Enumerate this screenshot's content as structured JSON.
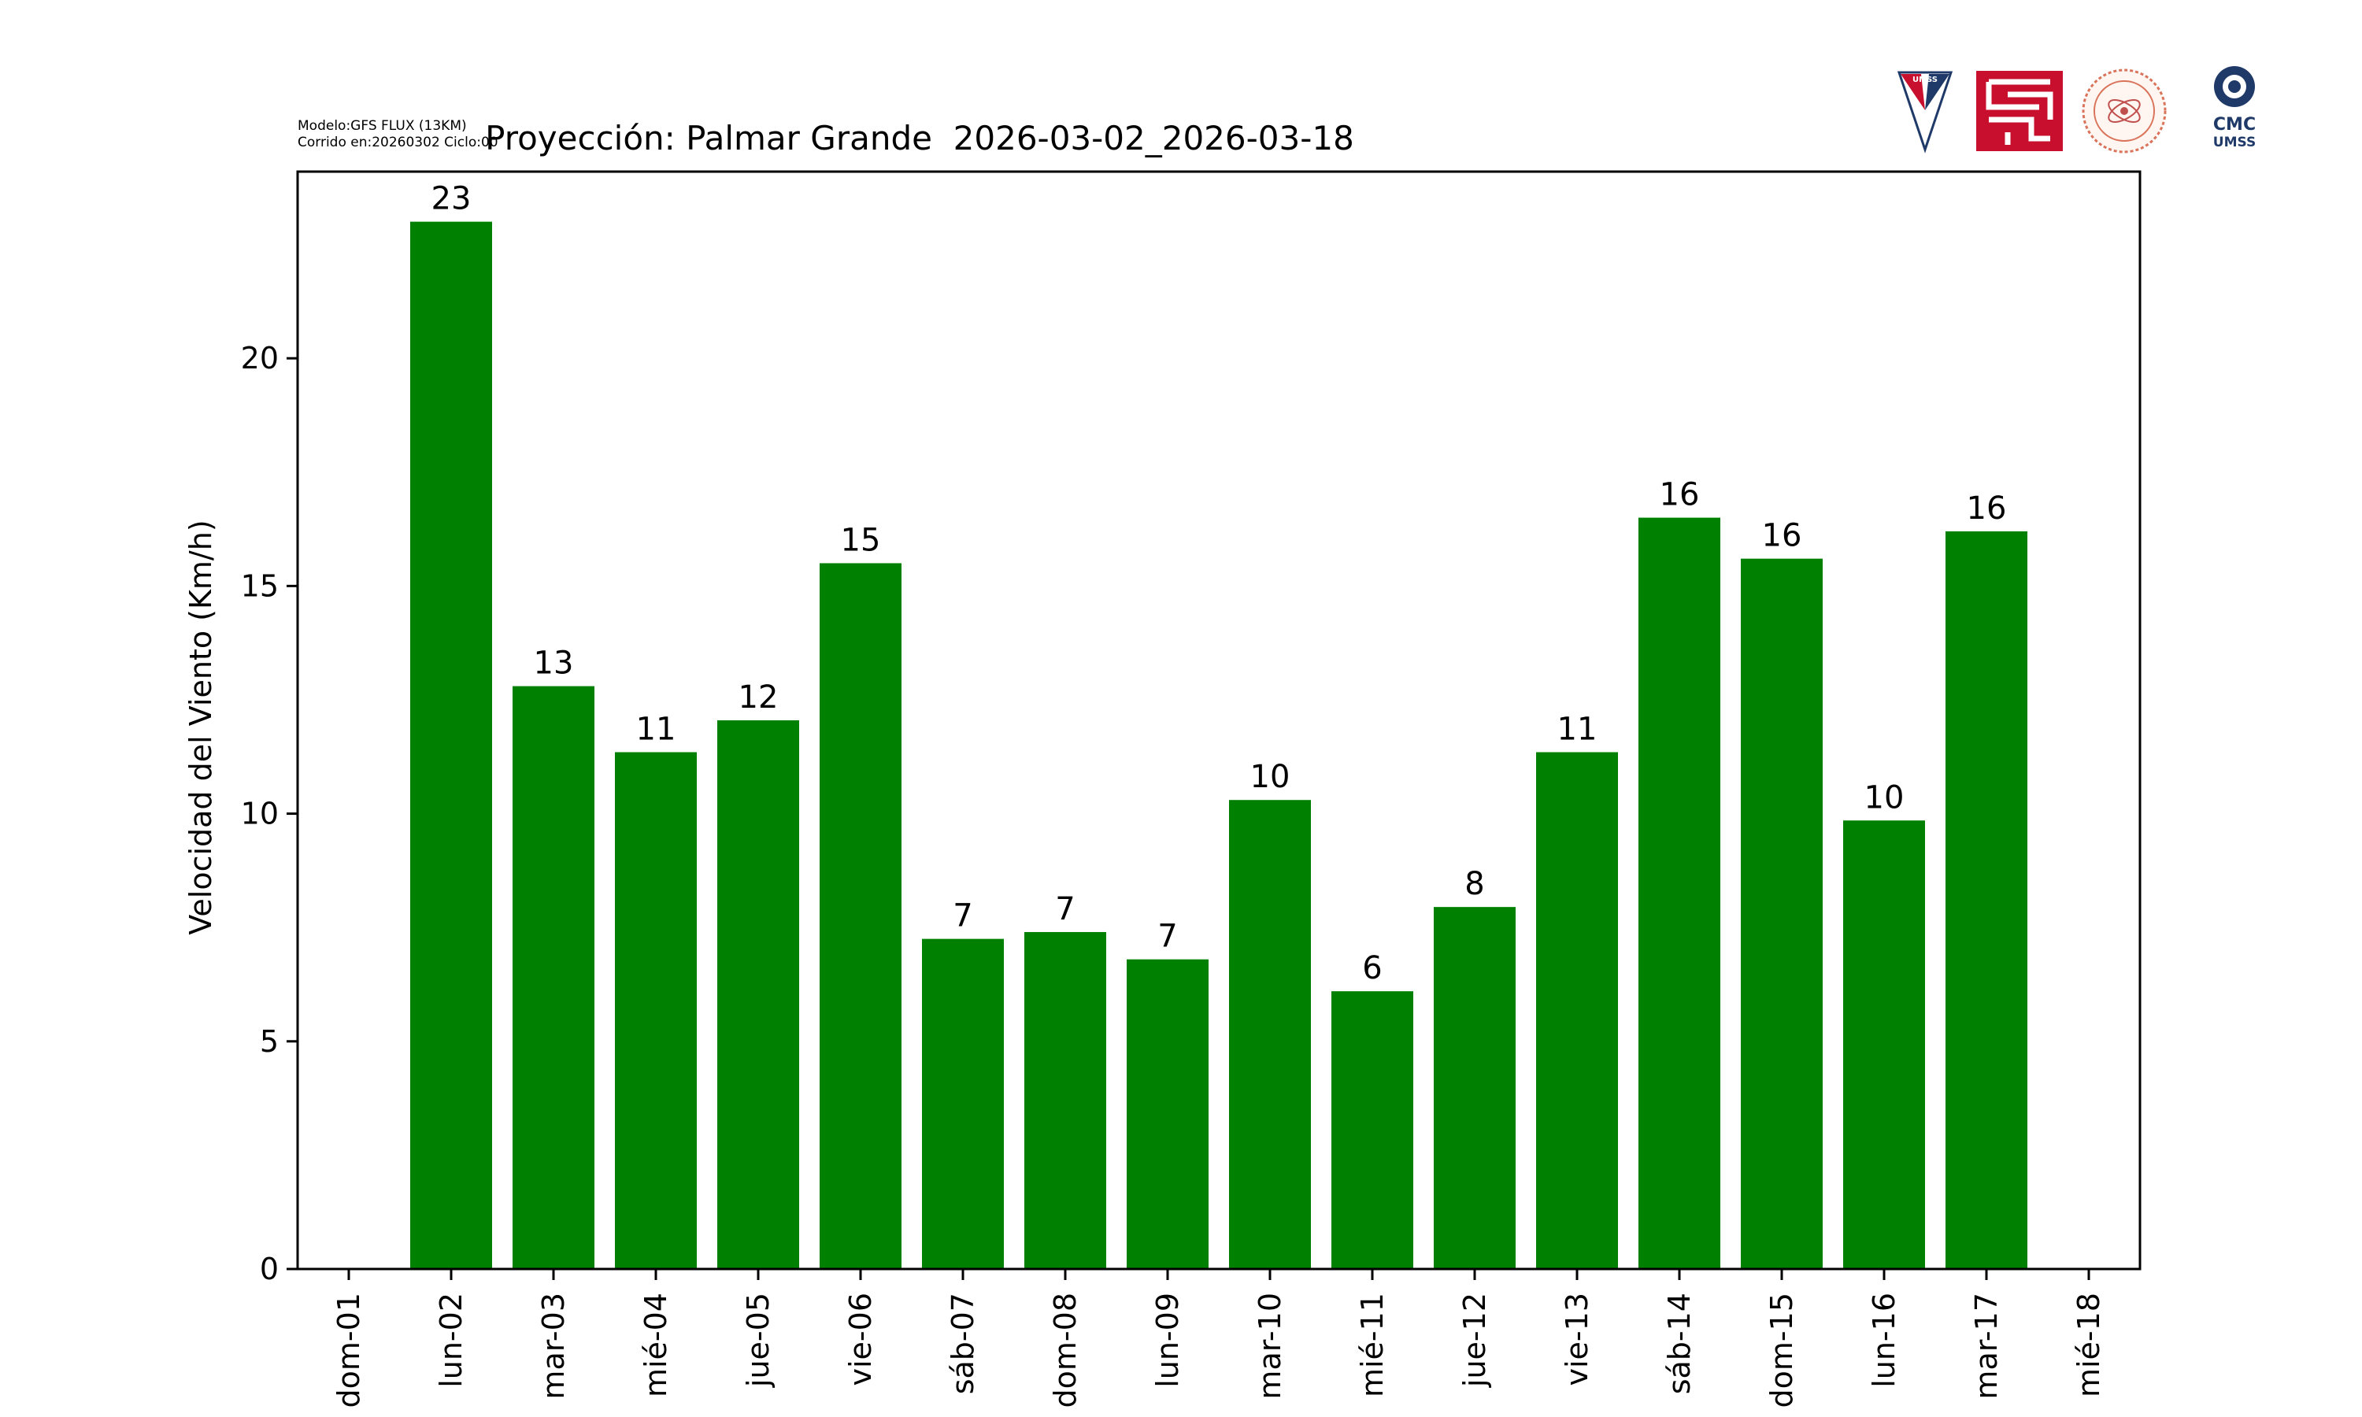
{
  "header": {
    "model_line": "Modelo:GFS FLUX (13KM)",
    "run_line": "Corrido en:20260302 Ciclo:00"
  },
  "logos": {
    "umss_shield_text": "UMSS",
    "cmc_text": "CMC",
    "cmc_sub": "UMSS"
  },
  "colors": {
    "bar": "#008000",
    "frame": "#000000",
    "logo_red": "#c8102e",
    "logo_navy": "#1f3a68"
  },
  "chart_data": {
    "type": "bar",
    "title": "Proyección: Palmar Grande  2026-03-02_2026-03-18",
    "ylabel": "Velocidad del Viento (Km/h)",
    "xlabel": "",
    "ylim": [
      0,
      24.1
    ],
    "yticks": [
      0,
      5,
      10,
      15,
      20
    ],
    "x_tick_labels": [
      "dom-01",
      "lun-02",
      "mar-03",
      "mié-04",
      "jue-05",
      "vie-06",
      "sáb-07",
      "dom-08",
      "lun-09",
      "mar-10",
      "mié-11",
      "jue-12",
      "vie-13",
      "sáb-14",
      "dom-15",
      "lun-16",
      "mar-17",
      "mié-18"
    ],
    "categories": [
      "lun-02",
      "mar-03",
      "mié-04",
      "jue-05",
      "vie-06",
      "sáb-07",
      "dom-08",
      "lun-09",
      "mar-10",
      "mié-11",
      "jue-12",
      "vie-13",
      "sáb-14",
      "dom-15",
      "lun-16",
      "mar-17"
    ],
    "values": [
      23.0,
      12.8,
      11.35,
      12.05,
      15.5,
      7.25,
      7.4,
      6.8,
      10.3,
      6.1,
      7.95,
      11.35,
      16.5,
      15.6,
      9.85,
      16.2
    ],
    "data_labels": [
      "23",
      "13",
      "11",
      "12",
      "15",
      "7",
      "7",
      "7",
      "10",
      "6",
      "8",
      "11",
      "16",
      "16",
      "10",
      "16"
    ],
    "grid": false,
    "legend": "none"
  }
}
